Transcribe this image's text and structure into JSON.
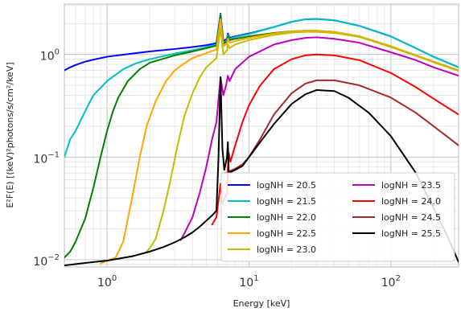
{
  "chart_data": {
    "type": "line",
    "title": "",
    "xlabel": "Energy [keV]",
    "ylabel": "E²F(E) [(keV)²photons/s/cm²/keV]",
    "xscale": "log",
    "yscale": "log",
    "xlim": [
      0.5,
      300
    ],
    "ylim": [
      0.0085,
      3.1
    ],
    "grid": true,
    "legend": {
      "position": "bottom-right",
      "columns": 2
    },
    "x_ticks": [
      {
        "value": 1,
        "label": "10",
        "exp": "0"
      },
      {
        "value": 10,
        "label": "10",
        "exp": "1"
      },
      {
        "value": 100,
        "label": "10",
        "exp": "2"
      }
    ],
    "y_ticks": [
      {
        "value": 0.01,
        "label": "10",
        "exp": "−2"
      },
      {
        "value": 0.1,
        "label": "10",
        "exp": "−1"
      },
      {
        "value": 1,
        "label": "10",
        "exp": "0"
      }
    ],
    "series": [
      {
        "name": "logNH = 20.5",
        "color": "#0000ff",
        "points": [
          [
            0.5,
            0.7
          ],
          [
            0.55,
            0.75
          ],
          [
            0.6,
            0.79
          ],
          [
            0.7,
            0.85
          ],
          [
            0.8,
            0.89
          ],
          [
            1,
            0.95
          ],
          [
            1.5,
            1.02
          ],
          [
            2,
            1.07
          ],
          [
            3,
            1.13
          ],
          [
            4,
            1.18
          ],
          [
            5,
            1.23
          ],
          [
            5.9,
            1.29
          ],
          [
            6.3,
            2.5
          ],
          [
            6.6,
            1.35
          ],
          [
            7,
            1.42
          ],
          [
            7.1,
            1.6
          ],
          [
            7.3,
            1.45
          ],
          [
            8,
            1.5
          ],
          [
            10,
            1.6
          ],
          [
            15,
            1.85
          ],
          [
            20,
            2.08
          ],
          [
            25,
            2.2
          ],
          [
            30,
            2.22
          ],
          [
            40,
            2.15
          ],
          [
            60,
            1.9
          ],
          [
            100,
            1.5
          ],
          [
            150,
            1.15
          ],
          [
            200,
            0.95
          ],
          [
            300,
            0.75
          ]
        ]
      },
      {
        "name": "logNH = 21.5",
        "color": "#00bfbf",
        "points": [
          [
            0.5,
            0.1
          ],
          [
            0.55,
            0.15
          ],
          [
            0.6,
            0.18
          ],
          [
            0.7,
            0.28
          ],
          [
            0.8,
            0.4
          ],
          [
            1,
            0.55
          ],
          [
            1.3,
            0.72
          ],
          [
            1.6,
            0.82
          ],
          [
            2,
            0.9
          ],
          [
            3,
            1.02
          ],
          [
            4,
            1.1
          ],
          [
            5,
            1.18
          ],
          [
            5.9,
            1.25
          ],
          [
            6.3,
            2.45
          ],
          [
            6.6,
            1.3
          ],
          [
            7,
            1.38
          ],
          [
            7.1,
            1.55
          ],
          [
            7.3,
            1.42
          ],
          [
            8,
            1.48
          ],
          [
            10,
            1.58
          ],
          [
            15,
            1.85
          ],
          [
            20,
            2.08
          ],
          [
            25,
            2.2
          ],
          [
            30,
            2.22
          ],
          [
            40,
            2.15
          ],
          [
            60,
            1.9
          ],
          [
            100,
            1.5
          ],
          [
            150,
            1.15
          ],
          [
            200,
            0.95
          ],
          [
            300,
            0.75
          ]
        ]
      },
      {
        "name": "logNH = 22.0",
        "color": "#007f00",
        "points": [
          [
            0.5,
            0.0105
          ],
          [
            0.55,
            0.012
          ],
          [
            0.6,
            0.015
          ],
          [
            0.7,
            0.025
          ],
          [
            0.8,
            0.05
          ],
          [
            0.9,
            0.1
          ],
          [
            1,
            0.18
          ],
          [
            1.1,
            0.28
          ],
          [
            1.2,
            0.38
          ],
          [
            1.4,
            0.55
          ],
          [
            1.7,
            0.72
          ],
          [
            2,
            0.83
          ],
          [
            3,
            0.98
          ],
          [
            4,
            1.07
          ],
          [
            5,
            1.15
          ],
          [
            5.9,
            1.22
          ],
          [
            6.3,
            2.4
          ],
          [
            6.6,
            1.27
          ],
          [
            7,
            1.34
          ],
          [
            7.1,
            1.5
          ],
          [
            7.3,
            1.38
          ],
          [
            8,
            1.42
          ],
          [
            10,
            1.5
          ],
          [
            15,
            1.62
          ],
          [
            20,
            1.68
          ],
          [
            25,
            1.7
          ],
          [
            30,
            1.7
          ],
          [
            40,
            1.66
          ],
          [
            60,
            1.5
          ],
          [
            100,
            1.2
          ],
          [
            150,
            0.98
          ],
          [
            200,
            0.85
          ],
          [
            300,
            0.7
          ]
        ]
      },
      {
        "name": "logNH = 22.5",
        "color": "#ffa500",
        "points": [
          [
            0.9,
            0.0092
          ],
          [
            1,
            0.0098
          ],
          [
            1.15,
            0.0105
          ],
          [
            1.3,
            0.015
          ],
          [
            1.5,
            0.04
          ],
          [
            1.7,
            0.1
          ],
          [
            1.9,
            0.2
          ],
          [
            2.2,
            0.35
          ],
          [
            2.6,
            0.55
          ],
          [
            3,
            0.7
          ],
          [
            3.5,
            0.82
          ],
          [
            4,
            0.92
          ],
          [
            5,
            1.03
          ],
          [
            5.9,
            1.12
          ],
          [
            6.3,
            2.2
          ],
          [
            6.6,
            1.2
          ],
          [
            7,
            1.28
          ],
          [
            7.1,
            1.43
          ],
          [
            7.3,
            1.3
          ],
          [
            8,
            1.35
          ],
          [
            10,
            1.45
          ],
          [
            15,
            1.6
          ],
          [
            20,
            1.67
          ],
          [
            25,
            1.7
          ],
          [
            30,
            1.7
          ],
          [
            40,
            1.66
          ],
          [
            60,
            1.5
          ],
          [
            100,
            1.2
          ],
          [
            150,
            0.98
          ],
          [
            200,
            0.85
          ],
          [
            300,
            0.7
          ]
        ]
      },
      {
        "name": "logNH = 23.0",
        "color": "#bfbf00",
        "points": [
          [
            1.9,
            0.012
          ],
          [
            2,
            0.013
          ],
          [
            2.2,
            0.016
          ],
          [
            2.5,
            0.03
          ],
          [
            2.8,
            0.06
          ],
          [
            3.1,
            0.12
          ],
          [
            3.5,
            0.25
          ],
          [
            4,
            0.42
          ],
          [
            4.5,
            0.6
          ],
          [
            5,
            0.75
          ],
          [
            5.9,
            0.92
          ],
          [
            6.3,
            1.8
          ],
          [
            6.6,
            1.0
          ],
          [
            7,
            1.1
          ],
          [
            7.1,
            1.25
          ],
          [
            7.3,
            1.15
          ],
          [
            8,
            1.25
          ],
          [
            10,
            1.38
          ],
          [
            15,
            1.55
          ],
          [
            20,
            1.63
          ],
          [
            25,
            1.66
          ],
          [
            30,
            1.66
          ],
          [
            40,
            1.62
          ],
          [
            60,
            1.48
          ],
          [
            100,
            1.18
          ],
          [
            150,
            0.97
          ],
          [
            200,
            0.84
          ],
          [
            300,
            0.69
          ]
        ]
      },
      {
        "name": "logNH = 23.5",
        "color": "#bf00bf",
        "points": [
          [
            3.3,
            0.0155
          ],
          [
            3.5,
            0.018
          ],
          [
            4,
            0.026
          ],
          [
            4.5,
            0.045
          ],
          [
            5,
            0.08
          ],
          [
            5.5,
            0.15
          ],
          [
            5.9,
            0.22
          ],
          [
            6.3,
            0.6
          ],
          [
            6.6,
            0.4
          ],
          [
            6.9,
            0.5
          ],
          [
            7.1,
            0.62
          ],
          [
            7.3,
            0.55
          ],
          [
            8,
            0.72
          ],
          [
            10,
            0.95
          ],
          [
            15,
            1.25
          ],
          [
            20,
            1.38
          ],
          [
            25,
            1.45
          ],
          [
            30,
            1.47
          ],
          [
            40,
            1.42
          ],
          [
            60,
            1.3
          ],
          [
            100,
            1.05
          ],
          [
            150,
            0.88
          ],
          [
            200,
            0.75
          ],
          [
            300,
            0.62
          ]
        ]
      },
      {
        "name": "logNH = 24.0",
        "color": "#ff0000",
        "points": [
          [
            5.5,
            0.022
          ],
          [
            5.9,
            0.026
          ],
          [
            6.3,
            0.055
          ],
          [
            6.5,
            0.035
          ],
          [
            7,
            0.045
          ],
          [
            7.1,
            0.08
          ],
          [
            7.2,
            0.11
          ],
          [
            7.4,
            0.09
          ],
          [
            8,
            0.13
          ],
          [
            9,
            0.22
          ],
          [
            10,
            0.32
          ],
          [
            12,
            0.5
          ],
          [
            15,
            0.72
          ],
          [
            20,
            0.9
          ],
          [
            25,
            0.98
          ],
          [
            30,
            1.0
          ],
          [
            40,
            0.98
          ],
          [
            60,
            0.88
          ],
          [
            100,
            0.66
          ],
          [
            150,
            0.48
          ],
          [
            200,
            0.37
          ],
          [
            300,
            0.26
          ]
        ]
      },
      {
        "name": "logNH = 24.5",
        "color": "#a52a2a",
        "points": [
          [
            6.8,
            0.07
          ],
          [
            7,
            0.07
          ],
          [
            7.5,
            0.074
          ],
          [
            8,
            0.077
          ],
          [
            9,
            0.085
          ],
          [
            10,
            0.1
          ],
          [
            12,
            0.15
          ],
          [
            15,
            0.26
          ],
          [
            20,
            0.42
          ],
          [
            25,
            0.52
          ],
          [
            30,
            0.56
          ],
          [
            40,
            0.56
          ],
          [
            60,
            0.5
          ],
          [
            100,
            0.38
          ],
          [
            150,
            0.27
          ],
          [
            200,
            0.2
          ],
          [
            300,
            0.13
          ]
        ]
      },
      {
        "name": "logNH = 25.5",
        "color": "#000000",
        "points": [
          [
            0.5,
            0.0088
          ],
          [
            0.7,
            0.0093
          ],
          [
            1,
            0.0098
          ],
          [
            1.5,
            0.0108
          ],
          [
            2,
            0.012
          ],
          [
            2.5,
            0.0133
          ],
          [
            3,
            0.0148
          ],
          [
            3.5,
            0.0165
          ],
          [
            4,
            0.0185
          ],
          [
            4.5,
            0.021
          ],
          [
            5,
            0.024
          ],
          [
            5.5,
            0.027
          ],
          [
            5.9,
            0.03
          ],
          [
            6.1,
            0.1
          ],
          [
            6.3,
            0.6
          ],
          [
            6.5,
            0.12
          ],
          [
            6.7,
            0.075
          ],
          [
            7.0,
            0.1
          ],
          [
            7.1,
            0.14
          ],
          [
            7.2,
            0.07
          ],
          [
            7.5,
            0.072
          ],
          [
            8,
            0.075
          ],
          [
            9,
            0.082
          ],
          [
            10,
            0.1
          ],
          [
            12,
            0.14
          ],
          [
            15,
            0.21
          ],
          [
            20,
            0.33
          ],
          [
            25,
            0.41
          ],
          [
            30,
            0.45
          ],
          [
            40,
            0.44
          ],
          [
            50,
            0.38
          ],
          [
            70,
            0.27
          ],
          [
            100,
            0.16
          ],
          [
            150,
            0.07
          ],
          [
            200,
            0.032
          ],
          [
            250,
            0.017
          ],
          [
            300,
            0.0095
          ]
        ]
      }
    ]
  }
}
